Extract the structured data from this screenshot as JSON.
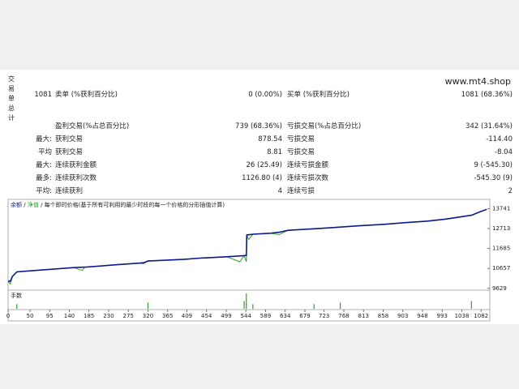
{
  "header": {
    "site": "www.mt4.shop",
    "section": "交易单总计"
  },
  "stats": {
    "rows": [
      {
        "prefix": "1081",
        "label1": "卖单 (%获利百分比)",
        "value1": "0 (0.00%)",
        "label2": "买单 (%获利百分比)",
        "value2": "1081 (68.36%)"
      },
      {
        "label1": "盈利交易(%占总百分比)",
        "value1": "739 (68.36%)",
        "label2": "亏损交易(%占总百分比)",
        "value2": "342 (31.64%)"
      },
      {
        "prefix": "最大:",
        "label1": "获利交易",
        "value1": "878.54",
        "label2": "亏损交易",
        "value2": "-114.40"
      },
      {
        "prefix": "平均",
        "label1": "获利交易",
        "value1": "8.81",
        "label2": "亏损交易",
        "value2": "-8.04"
      },
      {
        "prefix": "最大:",
        "label1": "连续获利金额",
        "value1": "26 (25.49)",
        "label2": "连续亏损金额",
        "value2": "9 (-545.30)"
      },
      {
        "prefix": "最多:",
        "label1": "连续获利次数",
        "value1": "1126.80 (4)",
        "label2": "连续亏损次数",
        "value2": "-545.30 (9)"
      },
      {
        "prefix": "平均:",
        "label1": "连续获利",
        "value1": "4",
        "label2": "连续亏损",
        "value2": "2"
      }
    ]
  },
  "chart_data": {
    "type": "line",
    "legend_separator": "/",
    "legend_note": "每个即时价格(基于所有可利用的最少时段的每一个价格的分形插值计算)",
    "x": [
      0,
      5,
      10,
      20,
      60,
      150,
      170,
      175,
      250,
      300,
      310,
      320,
      400,
      440,
      500,
      530,
      540,
      545,
      546,
      550,
      560,
      600,
      620,
      640,
      700,
      740,
      800,
      860,
      900,
      960,
      1000,
      1060,
      1080,
      1095
    ],
    "series": [
      {
        "name": "余额",
        "color": "#0a1a8c",
        "values": [
          10000,
          10000,
          10250,
          10480,
          10550,
          10700,
          10720,
          10720,
          10850,
          10930,
          10950,
          11040,
          11120,
          11190,
          11260,
          11300,
          11320,
          11330,
          12380,
          12390,
          12420,
          12470,
          12520,
          12620,
          12700,
          12760,
          12850,
          12930,
          13000,
          13100,
          13200,
          13400,
          13580,
          13700
        ]
      },
      {
        "name": "净值",
        "color": "#2ea02e",
        "values": [
          10000,
          9850,
          10250,
          10480,
          10550,
          10700,
          10550,
          10720,
          10850,
          10930,
          10900,
          11040,
          11120,
          11190,
          11260,
          11000,
          11320,
          11000,
          12380,
          12150,
          12420,
          12470,
          12400,
          12620,
          12700,
          12760,
          12850,
          12930,
          13000,
          13100,
          13200,
          13400,
          13580,
          13700
        ]
      }
    ],
    "xlim": [
      0,
      1102
    ],
    "xticks": [
      0,
      50,
      95,
      140,
      185,
      230,
      275,
      320,
      365,
      409,
      454,
      499,
      544,
      589,
      634,
      679,
      723,
      768,
      813,
      858,
      903,
      948,
      993,
      1038,
      1082
    ],
    "ylim": [
      9580,
      13800
    ],
    "yticks": [
      9629,
      10657,
      11685,
      12713,
      13741
    ],
    "lots": {
      "label": "手数",
      "color": "#2ea02e",
      "x": [
        20,
        320,
        540,
        545,
        560,
        700,
        760,
        1060
      ],
      "values": [
        0.3,
        0.4,
        0.5,
        1.0,
        0.3,
        0.3,
        0.4,
        0.5
      ],
      "ylim": [
        0,
        1
      ]
    }
  }
}
